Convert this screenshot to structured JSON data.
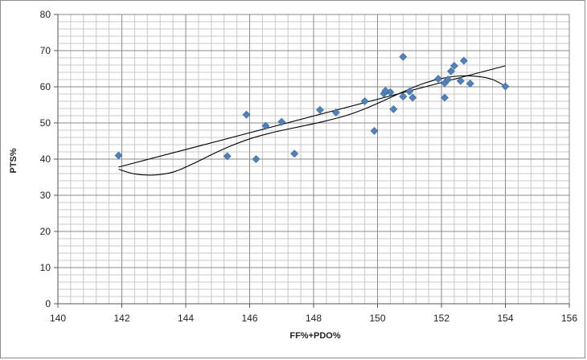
{
  "chart_data": {
    "type": "scatter",
    "title": "",
    "xlabel": "FF%+PDO%",
    "ylabel": "PTS%",
    "xlim": [
      140,
      156
    ],
    "ylim": [
      0,
      80
    ],
    "x_ticks": [
      140,
      142,
      144,
      146,
      148,
      150,
      152,
      154,
      156
    ],
    "y_ticks": [
      0,
      10,
      20,
      30,
      40,
      50,
      60,
      70,
      80
    ],
    "x_minor_step": 0.4,
    "y_minor_step": 2,
    "grid": true,
    "legend": "none",
    "marker_color": "#4f81bd",
    "line_color": "#000000",
    "series": [
      {
        "points": [
          [
            141.9,
            41.0
          ],
          [
            145.3,
            40.8
          ],
          [
            145.9,
            52.3
          ],
          [
            146.2,
            40.0
          ],
          [
            146.5,
            49.2
          ],
          [
            147.0,
            50.3
          ],
          [
            147.4,
            41.5
          ],
          [
            148.2,
            53.6
          ],
          [
            148.7,
            52.9
          ],
          [
            149.6,
            56.0
          ],
          [
            149.9,
            47.8
          ],
          [
            150.2,
            58.1
          ],
          [
            150.25,
            58.9
          ],
          [
            150.4,
            58.5
          ],
          [
            150.5,
            53.8
          ],
          [
            150.8,
            57.3
          ],
          [
            150.8,
            68.3
          ],
          [
            151.0,
            58.7
          ],
          [
            151.1,
            57.0
          ],
          [
            151.9,
            62.2
          ],
          [
            152.1,
            57.0
          ],
          [
            152.1,
            61.0
          ],
          [
            152.2,
            62.0
          ],
          [
            152.3,
            64.3
          ],
          [
            152.4,
            65.8
          ],
          [
            152.6,
            61.6
          ],
          [
            152.7,
            67.2
          ],
          [
            152.9,
            60.9
          ],
          [
            154.0,
            60.1
          ]
        ]
      }
    ],
    "trendlines": [
      {
        "kind": "linear",
        "x": [
          141.9,
          154.0
        ],
        "y": [
          37.8,
          65.8
        ]
      },
      {
        "kind": "polynomial",
        "x": [
          141.9,
          142.4,
          143.0,
          143.6,
          144.2,
          144.8,
          145.4,
          146.0,
          146.6,
          147.2,
          147.8,
          148.4,
          149.0,
          149.6,
          150.2,
          150.8,
          151.4,
          152.0,
          152.6,
          153.2,
          153.6,
          154.0
        ],
        "y": [
          37.2,
          35.9,
          35.6,
          36.4,
          38.6,
          41.2,
          43.6,
          45.6,
          47.1,
          48.3,
          49.4,
          50.6,
          52.0,
          53.9,
          56.2,
          58.6,
          60.8,
          62.3,
          63.0,
          62.8,
          62.0,
          60.2
        ]
      }
    ]
  }
}
